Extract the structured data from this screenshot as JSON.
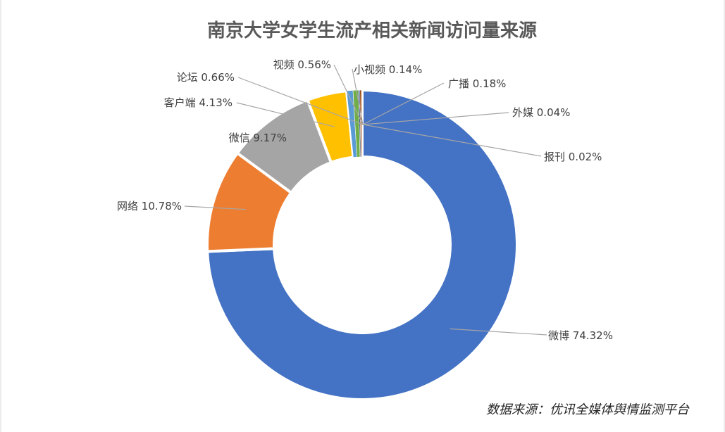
{
  "chart_data": {
    "type": "pie",
    "title": "南京大学女学生流产相关新闻访问量来源",
    "source_note": "数据来源：优讯全媒体舆情监测平台",
    "categories": [
      "微博",
      "网络",
      "微信",
      "客户端",
      "论坛",
      "视频",
      "小视频",
      "广播",
      "外媒",
      "报刊"
    ],
    "values": [
      74.32,
      10.78,
      9.17,
      4.13,
      0.66,
      0.56,
      0.14,
      0.18,
      0.04,
      0.02
    ],
    "unit": "%",
    "data_labels": [
      "微博 74.32%",
      "网络 10.78%",
      "微信 9.17%",
      "客户端 4.13%",
      "论坛 0.66%",
      "视频 0.56%",
      "小视频 0.14%",
      "广播 0.18%",
      "外媒 0.04%",
      "报刊 0.02%"
    ],
    "colors": [
      "#4472c4",
      "#ed7d31",
      "#a5a5a5",
      "#ffc000",
      "#5b9bd5",
      "#70ad47",
      "#264478",
      "#9e480e",
      "#636363",
      "#997300"
    ],
    "donut": true,
    "legend": "none"
  }
}
